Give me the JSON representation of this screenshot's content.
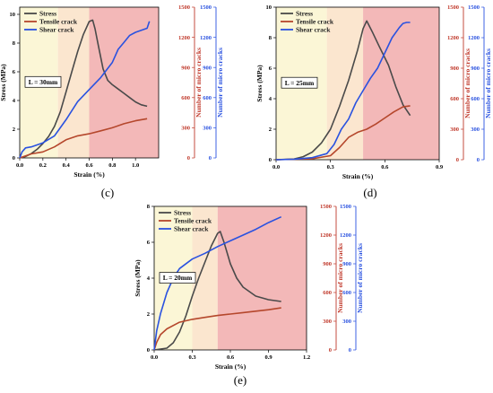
{
  "colors": {
    "stress": "#4a4a4a",
    "tensile": "#b5472c",
    "shear": "#2a52e0",
    "left_axis": "#000000",
    "red_axis": "#c0392b",
    "blue_axis": "#2a52e0",
    "zone_yellow": "#fbf6d6",
    "zone_peach": "#fbe6cf",
    "zone_red": "#f3b8b8"
  },
  "chart_data": [
    {
      "id": "c",
      "panel_label": "(c)",
      "type": "line",
      "annotation": "L = 30mm",
      "xlabel": "Strain (%)",
      "ylabel_left": "Stress (MPa)",
      "ylabel_mid": "Number of micro cracks",
      "ylabel_right": "Number of micro cracks",
      "xlim": [
        0,
        1.2
      ],
      "xticks": [
        "0.0",
        "0.2",
        "0.4",
        "0.6",
        "0.8",
        "1.0"
      ],
      "xtick_values": [
        0,
        0.2,
        0.4,
        0.6,
        0.8,
        1.0
      ],
      "ylim_left": [
        0,
        10.5
      ],
      "yticks_left": [
        0,
        2,
        4,
        6,
        8,
        10
      ],
      "ylim_mid": [
        0,
        1500
      ],
      "yticks_mid": [
        0,
        300,
        600,
        900,
        1200,
        1500
      ],
      "ylim_right": [
        0,
        1500
      ],
      "yticks_right": [
        0,
        300,
        600,
        900,
        1200,
        1500
      ],
      "zones": [
        [
          0,
          0.33,
          "zone_yellow"
        ],
        [
          0.33,
          0.6,
          "zone_peach"
        ],
        [
          0.6,
          1.2,
          "zone_red"
        ]
      ],
      "legend": [
        "Stress",
        "Tensile crack",
        "Shear crack"
      ],
      "series": [
        {
          "name": "Stress",
          "axis": "left",
          "color_key": "stress",
          "x": [
            0,
            0.05,
            0.1,
            0.15,
            0.2,
            0.25,
            0.3,
            0.35,
            0.4,
            0.45,
            0.5,
            0.55,
            0.6,
            0.63,
            0.65,
            0.68,
            0.72,
            0.76,
            0.8,
            0.85,
            0.9,
            0.95,
            1.0,
            1.05,
            1.1
          ],
          "y": [
            0,
            0.1,
            0.3,
            0.6,
            1.0,
            1.5,
            2.2,
            3.2,
            4.6,
            6.0,
            7.4,
            8.6,
            9.5,
            9.6,
            9.0,
            7.8,
            6.2,
            5.4,
            5.1,
            4.8,
            4.5,
            4.2,
            3.9,
            3.7,
            3.6
          ]
        },
        {
          "name": "Tensile crack",
          "axis": "mid",
          "color_key": "tensile",
          "x": [
            0,
            0.05,
            0.1,
            0.2,
            0.3,
            0.4,
            0.5,
            0.6,
            0.7,
            0.8,
            0.9,
            1.0,
            1.1
          ],
          "y": [
            0,
            20,
            40,
            60,
            110,
            180,
            220,
            240,
            270,
            300,
            340,
            370,
            390
          ]
        },
        {
          "name": "Shear crack",
          "axis": "right",
          "color_key": "shear",
          "x": [
            0,
            0.02,
            0.05,
            0.1,
            0.2,
            0.3,
            0.4,
            0.5,
            0.6,
            0.7,
            0.8,
            0.85,
            0.9,
            0.95,
            1.0,
            1.05,
            1.1,
            1.12
          ],
          "y": [
            0,
            60,
            100,
            110,
            150,
            220,
            380,
            560,
            680,
            800,
            950,
            1080,
            1150,
            1220,
            1250,
            1270,
            1290,
            1360
          ]
        }
      ]
    },
    {
      "id": "d",
      "panel_label": "(d)",
      "type": "line",
      "annotation": "L = 25mm",
      "xlabel": "Strain (%)",
      "ylabel_left": "Stress (MPa)",
      "ylabel_mid": "Number of micro cracks",
      "ylabel_right": "Number of micro cracks",
      "xlim": [
        0,
        0.9
      ],
      "xticks": [
        "0.0",
        "0.3",
        "0.6",
        "0.9"
      ],
      "xtick_values": [
        0,
        0.3,
        0.6,
        0.9
      ],
      "ylim_left": [
        0,
        10
      ],
      "yticks_left": [
        0,
        2,
        4,
        6,
        8,
        10
      ],
      "ylim_mid": [
        0,
        1500
      ],
      "yticks_mid": [
        0,
        300,
        600,
        900,
        1200,
        1500
      ],
      "ylim_right": [
        0,
        1500
      ],
      "yticks_right": [
        0,
        300,
        600,
        900,
        1200,
        1500
      ],
      "zones": [
        [
          0,
          0.28,
          "zone_yellow"
        ],
        [
          0.28,
          0.48,
          "zone_peach"
        ],
        [
          0.48,
          0.9,
          "zone_red"
        ]
      ],
      "legend": [
        "Stress",
        "Tensile crack",
        "Shear crack"
      ],
      "series": [
        {
          "name": "Stress",
          "axis": "left",
          "color_key": "stress",
          "x": [
            0,
            0.1,
            0.15,
            0.2,
            0.25,
            0.3,
            0.35,
            0.4,
            0.45,
            0.48,
            0.5,
            0.53,
            0.57,
            0.62,
            0.66,
            0.7,
            0.74
          ],
          "y": [
            0,
            0.05,
            0.2,
            0.5,
            1.1,
            2.0,
            3.5,
            5.2,
            7.2,
            8.6,
            9.1,
            8.4,
            7.4,
            6.2,
            4.8,
            3.6,
            2.9
          ]
        },
        {
          "name": "Tensile crack",
          "axis": "mid",
          "color_key": "tensile",
          "x": [
            0,
            0.2,
            0.3,
            0.35,
            0.4,
            0.45,
            0.5,
            0.55,
            0.6,
            0.65,
            0.7,
            0.74
          ],
          "y": [
            0,
            10,
            40,
            120,
            220,
            270,
            300,
            350,
            410,
            470,
            520,
            530
          ]
        },
        {
          "name": "Shear crack",
          "axis": "right",
          "color_key": "shear",
          "x": [
            0,
            0.1,
            0.2,
            0.28,
            0.32,
            0.36,
            0.4,
            0.44,
            0.48,
            0.52,
            0.56,
            0.6,
            0.64,
            0.68,
            0.7,
            0.72,
            0.74
          ],
          "y": [
            0,
            5,
            20,
            60,
            150,
            300,
            400,
            560,
            680,
            800,
            900,
            1050,
            1200,
            1300,
            1340,
            1350,
            1350
          ]
        }
      ]
    },
    {
      "id": "e",
      "panel_label": "(e)",
      "type": "line",
      "annotation": "L = 20mm",
      "xlabel": "Strain (%)",
      "ylabel_left": "Stress (MPa)",
      "ylabel_mid": "Number of micro cracks",
      "ylabel_right": "Number of micro cracks",
      "xlim": [
        0,
        1.2
      ],
      "xticks": [
        "0.0",
        "0.3",
        "0.6",
        "0.9",
        "1.2"
      ],
      "xtick_values": [
        0,
        0.3,
        0.6,
        0.9,
        1.2
      ],
      "ylim_left": [
        0,
        8
      ],
      "yticks_left": [
        0,
        2,
        4,
        6,
        8
      ],
      "ylim_mid": [
        0,
        1500
      ],
      "yticks_mid": [
        0,
        300,
        600,
        900,
        1200,
        1500
      ],
      "ylim_right": [
        0,
        1500
      ],
      "yticks_right": [
        0,
        300,
        600,
        900,
        1200,
        1500
      ],
      "zones": [
        [
          0,
          0.3,
          "zone_yellow"
        ],
        [
          0.3,
          0.5,
          "zone_peach"
        ],
        [
          0.5,
          1.2,
          "zone_red"
        ]
      ],
      "legend": [
        "Stress",
        "Tensile crack",
        "Shear crack"
      ],
      "series": [
        {
          "name": "Stress",
          "axis": "left",
          "color_key": "stress",
          "x": [
            0,
            0.1,
            0.15,
            0.2,
            0.25,
            0.3,
            0.35,
            0.4,
            0.45,
            0.5,
            0.52,
            0.55,
            0.6,
            0.65,
            0.7,
            0.8,
            0.9,
            1.0
          ],
          "y": [
            0,
            0.1,
            0.4,
            1.0,
            1.9,
            3.0,
            4.0,
            4.9,
            5.8,
            6.5,
            6.6,
            6.0,
            4.8,
            4.0,
            3.5,
            3.0,
            2.8,
            2.7
          ]
        },
        {
          "name": "Tensile crack",
          "axis": "mid",
          "color_key": "tensile",
          "x": [
            0,
            0.02,
            0.05,
            0.1,
            0.2,
            0.3,
            0.4,
            0.5,
            0.6,
            0.7,
            0.8,
            0.9,
            1.0
          ],
          "y": [
            0,
            80,
            160,
            220,
            290,
            320,
            340,
            360,
            375,
            390,
            405,
            420,
            440
          ]
        },
        {
          "name": "Shear crack",
          "axis": "right",
          "color_key": "shear",
          "x": [
            0,
            0.02,
            0.05,
            0.1,
            0.15,
            0.2,
            0.3,
            0.4,
            0.5,
            0.6,
            0.7,
            0.8,
            0.9,
            1.0
          ],
          "y": [
            0,
            200,
            380,
            600,
            750,
            850,
            950,
            1010,
            1080,
            1140,
            1200,
            1260,
            1330,
            1390
          ]
        }
      ]
    }
  ]
}
